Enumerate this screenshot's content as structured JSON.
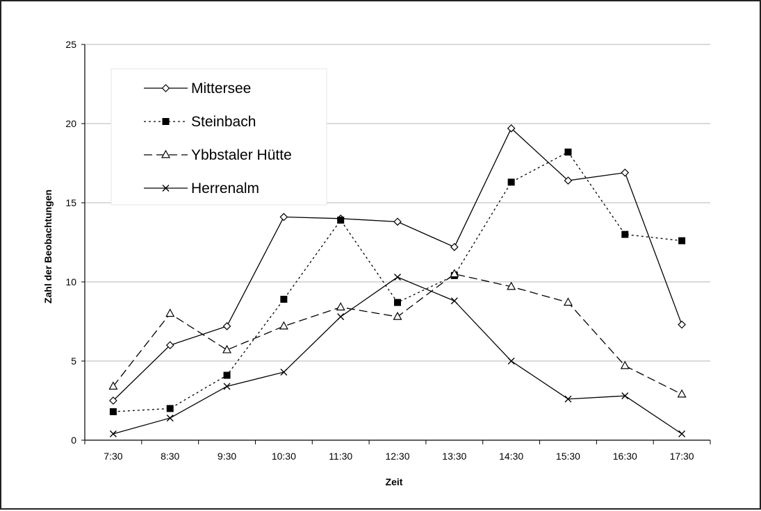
{
  "chart_data": {
    "type": "line",
    "xlabel": "Zeit",
    "ylabel": "Zahl der Beobachtungen",
    "categories": [
      "7:30",
      "8:30",
      "9:30",
      "10:30",
      "11:30",
      "12:30",
      "13:30",
      "14:30",
      "15:30",
      "16:30",
      "17:30"
    ],
    "ylim": [
      0,
      25
    ],
    "yticks": [
      "0",
      "5",
      "10",
      "15",
      "20",
      "25"
    ],
    "grid": true,
    "legend_position": "top-left",
    "series": [
      {
        "name": "Mittersee",
        "marker": "diamond",
        "line": "solid",
        "color": "#000000",
        "values": [
          2.5,
          6.0,
          7.2,
          14.1,
          14.0,
          13.8,
          12.2,
          19.7,
          16.4,
          16.9,
          7.3
        ]
      },
      {
        "name": "Steinbach",
        "marker": "square",
        "line": "dotted",
        "color": "#000000",
        "values": [
          1.8,
          2.0,
          4.1,
          8.9,
          13.9,
          8.7,
          10.4,
          16.3,
          18.2,
          13.0,
          12.6
        ]
      },
      {
        "name": "Ybbstaler Hütte",
        "marker": "triangle",
        "line": "dashed",
        "color": "#000000",
        "values": [
          3.4,
          8.0,
          5.7,
          7.2,
          8.4,
          7.8,
          10.5,
          9.7,
          8.7,
          4.7,
          2.9
        ]
      },
      {
        "name": "Herrenalm",
        "marker": "x",
        "line": "solid",
        "color": "#000000",
        "values": [
          0.4,
          1.4,
          3.4,
          4.3,
          7.8,
          10.3,
          8.8,
          5.0,
          2.6,
          2.8,
          0.4
        ]
      }
    ]
  }
}
